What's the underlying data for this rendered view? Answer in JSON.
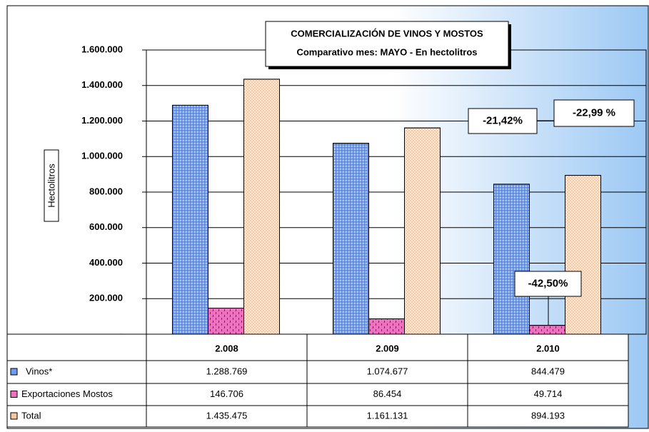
{
  "chart_data": {
    "type": "bar",
    "title": "COMERCIALIZACIÓN DE VINOS Y MOSTOS",
    "subtitle": "Comparativo mes: MAYO - En hectolitros",
    "y_label": "Hectolitros",
    "categories": [
      "2.008",
      "2.009",
      "2.010"
    ],
    "series": [
      {
        "name": "Vinos*",
        "color": "#6f9cf0",
        "values": [
          1288769,
          1074677,
          844479
        ],
        "value_labels": [
          "1.288.769",
          "1.074.677",
          "844.479"
        ]
      },
      {
        "name": "Exportaciones Mostos",
        "color": "#f070c0",
        "values": [
          146706,
          86454,
          49714
        ],
        "value_labels": [
          "146.706",
          "86.454",
          "49.714"
        ]
      },
      {
        "name": "Total",
        "color": "#f8c8a0",
        "values": [
          1435475,
          1161131,
          894193
        ],
        "value_labels": [
          "1.435.475",
          "1.161.131",
          "894.193"
        ]
      }
    ],
    "ylim": [
      0,
      1600000
    ],
    "yticks": [
      {
        "value": 0,
        "label": "-"
      },
      {
        "value": 200000,
        "label": "200.000"
      },
      {
        "value": 400000,
        "label": "400.000"
      },
      {
        "value": 600000,
        "label": "600.000"
      },
      {
        "value": 800000,
        "label": "800.000"
      },
      {
        "value": 1000000,
        "label": "1.000.000"
      },
      {
        "value": 1200000,
        "label": "1.200.000"
      },
      {
        "value": 1400000,
        "label": "1.400.000"
      },
      {
        "value": 1600000,
        "label": "1.600.000"
      }
    ],
    "grid": true,
    "annotations": [
      "-21,42%",
      "-22,99 %",
      "-42,50%"
    ]
  }
}
